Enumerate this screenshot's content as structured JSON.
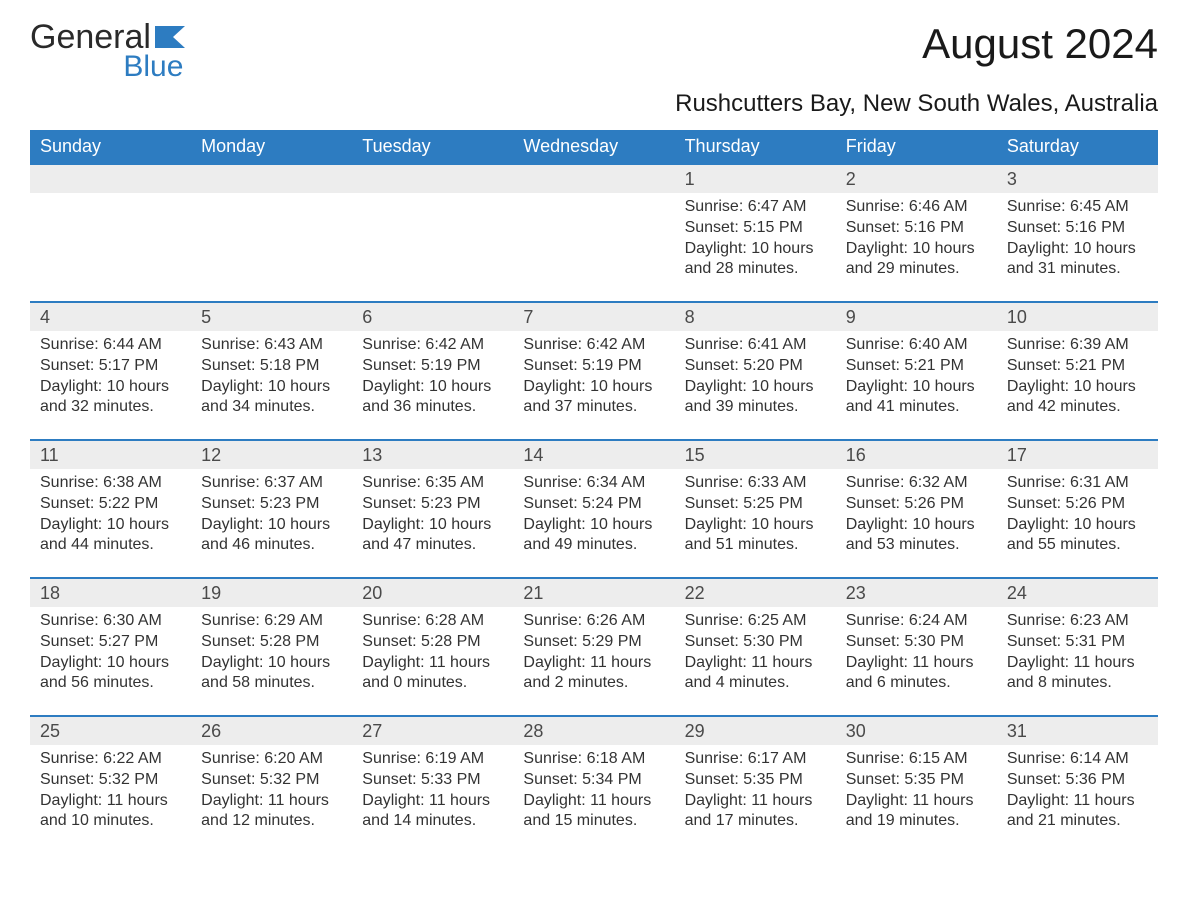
{
  "logo": {
    "text_main": "General",
    "text_accent": "Blue",
    "accent_color": "#2d7cc1",
    "main_color": "#2a2a2a"
  },
  "header": {
    "title": "August 2024",
    "subtitle": "Rushcutters Bay, New South Wales, Australia"
  },
  "styling": {
    "header_bg": "#2d7cc1",
    "header_text_color": "#ffffff",
    "daynum_bg": "#ededed",
    "daynum_text_color": "#4a4a4a",
    "body_text_color": "#333333",
    "week_border_color": "#2d7cc1",
    "page_bg": "#ffffff",
    "title_fontsize": 42,
    "subtitle_fontsize": 24,
    "dow_fontsize": 18,
    "daynum_fontsize": 18,
    "cell_fontsize": 16,
    "columns": 7
  },
  "days_of_week": [
    "Sunday",
    "Monday",
    "Tuesday",
    "Wednesday",
    "Thursday",
    "Friday",
    "Saturday"
  ],
  "weeks": [
    {
      "days": [
        {
          "num": "",
          "sunrise": "",
          "sunset": "",
          "daylight": ""
        },
        {
          "num": "",
          "sunrise": "",
          "sunset": "",
          "daylight": ""
        },
        {
          "num": "",
          "sunrise": "",
          "sunset": "",
          "daylight": ""
        },
        {
          "num": "",
          "sunrise": "",
          "sunset": "",
          "daylight": ""
        },
        {
          "num": "1",
          "sunrise": "Sunrise: 6:47 AM",
          "sunset": "Sunset: 5:15 PM",
          "daylight": "Daylight: 10 hours and 28 minutes."
        },
        {
          "num": "2",
          "sunrise": "Sunrise: 6:46 AM",
          "sunset": "Sunset: 5:16 PM",
          "daylight": "Daylight: 10 hours and 29 minutes."
        },
        {
          "num": "3",
          "sunrise": "Sunrise: 6:45 AM",
          "sunset": "Sunset: 5:16 PM",
          "daylight": "Daylight: 10 hours and 31 minutes."
        }
      ]
    },
    {
      "days": [
        {
          "num": "4",
          "sunrise": "Sunrise: 6:44 AM",
          "sunset": "Sunset: 5:17 PM",
          "daylight": "Daylight: 10 hours and 32 minutes."
        },
        {
          "num": "5",
          "sunrise": "Sunrise: 6:43 AM",
          "sunset": "Sunset: 5:18 PM",
          "daylight": "Daylight: 10 hours and 34 minutes."
        },
        {
          "num": "6",
          "sunrise": "Sunrise: 6:42 AM",
          "sunset": "Sunset: 5:19 PM",
          "daylight": "Daylight: 10 hours and 36 minutes."
        },
        {
          "num": "7",
          "sunrise": "Sunrise: 6:42 AM",
          "sunset": "Sunset: 5:19 PM",
          "daylight": "Daylight: 10 hours and 37 minutes."
        },
        {
          "num": "8",
          "sunrise": "Sunrise: 6:41 AM",
          "sunset": "Sunset: 5:20 PM",
          "daylight": "Daylight: 10 hours and 39 minutes."
        },
        {
          "num": "9",
          "sunrise": "Sunrise: 6:40 AM",
          "sunset": "Sunset: 5:21 PM",
          "daylight": "Daylight: 10 hours and 41 minutes."
        },
        {
          "num": "10",
          "sunrise": "Sunrise: 6:39 AM",
          "sunset": "Sunset: 5:21 PM",
          "daylight": "Daylight: 10 hours and 42 minutes."
        }
      ]
    },
    {
      "days": [
        {
          "num": "11",
          "sunrise": "Sunrise: 6:38 AM",
          "sunset": "Sunset: 5:22 PM",
          "daylight": "Daylight: 10 hours and 44 minutes."
        },
        {
          "num": "12",
          "sunrise": "Sunrise: 6:37 AM",
          "sunset": "Sunset: 5:23 PM",
          "daylight": "Daylight: 10 hours and 46 minutes."
        },
        {
          "num": "13",
          "sunrise": "Sunrise: 6:35 AM",
          "sunset": "Sunset: 5:23 PM",
          "daylight": "Daylight: 10 hours and 47 minutes."
        },
        {
          "num": "14",
          "sunrise": "Sunrise: 6:34 AM",
          "sunset": "Sunset: 5:24 PM",
          "daylight": "Daylight: 10 hours and 49 minutes."
        },
        {
          "num": "15",
          "sunrise": "Sunrise: 6:33 AM",
          "sunset": "Sunset: 5:25 PM",
          "daylight": "Daylight: 10 hours and 51 minutes."
        },
        {
          "num": "16",
          "sunrise": "Sunrise: 6:32 AM",
          "sunset": "Sunset: 5:26 PM",
          "daylight": "Daylight: 10 hours and 53 minutes."
        },
        {
          "num": "17",
          "sunrise": "Sunrise: 6:31 AM",
          "sunset": "Sunset: 5:26 PM",
          "daylight": "Daylight: 10 hours and 55 minutes."
        }
      ]
    },
    {
      "days": [
        {
          "num": "18",
          "sunrise": "Sunrise: 6:30 AM",
          "sunset": "Sunset: 5:27 PM",
          "daylight": "Daylight: 10 hours and 56 minutes."
        },
        {
          "num": "19",
          "sunrise": "Sunrise: 6:29 AM",
          "sunset": "Sunset: 5:28 PM",
          "daylight": "Daylight: 10 hours and 58 minutes."
        },
        {
          "num": "20",
          "sunrise": "Sunrise: 6:28 AM",
          "sunset": "Sunset: 5:28 PM",
          "daylight": "Daylight: 11 hours and 0 minutes."
        },
        {
          "num": "21",
          "sunrise": "Sunrise: 6:26 AM",
          "sunset": "Sunset: 5:29 PM",
          "daylight": "Daylight: 11 hours and 2 minutes."
        },
        {
          "num": "22",
          "sunrise": "Sunrise: 6:25 AM",
          "sunset": "Sunset: 5:30 PM",
          "daylight": "Daylight: 11 hours and 4 minutes."
        },
        {
          "num": "23",
          "sunrise": "Sunrise: 6:24 AM",
          "sunset": "Sunset: 5:30 PM",
          "daylight": "Daylight: 11 hours and 6 minutes."
        },
        {
          "num": "24",
          "sunrise": "Sunrise: 6:23 AM",
          "sunset": "Sunset: 5:31 PM",
          "daylight": "Daylight: 11 hours and 8 minutes."
        }
      ]
    },
    {
      "days": [
        {
          "num": "25",
          "sunrise": "Sunrise: 6:22 AM",
          "sunset": "Sunset: 5:32 PM",
          "daylight": "Daylight: 11 hours and 10 minutes."
        },
        {
          "num": "26",
          "sunrise": "Sunrise: 6:20 AM",
          "sunset": "Sunset: 5:32 PM",
          "daylight": "Daylight: 11 hours and 12 minutes."
        },
        {
          "num": "27",
          "sunrise": "Sunrise: 6:19 AM",
          "sunset": "Sunset: 5:33 PM",
          "daylight": "Daylight: 11 hours and 14 minutes."
        },
        {
          "num": "28",
          "sunrise": "Sunrise: 6:18 AM",
          "sunset": "Sunset: 5:34 PM",
          "daylight": "Daylight: 11 hours and 15 minutes."
        },
        {
          "num": "29",
          "sunrise": "Sunrise: 6:17 AM",
          "sunset": "Sunset: 5:35 PM",
          "daylight": "Daylight: 11 hours and 17 minutes."
        },
        {
          "num": "30",
          "sunrise": "Sunrise: 6:15 AM",
          "sunset": "Sunset: 5:35 PM",
          "daylight": "Daylight: 11 hours and 19 minutes."
        },
        {
          "num": "31",
          "sunrise": "Sunrise: 6:14 AM",
          "sunset": "Sunset: 5:36 PM",
          "daylight": "Daylight: 11 hours and 21 minutes."
        }
      ]
    }
  ]
}
